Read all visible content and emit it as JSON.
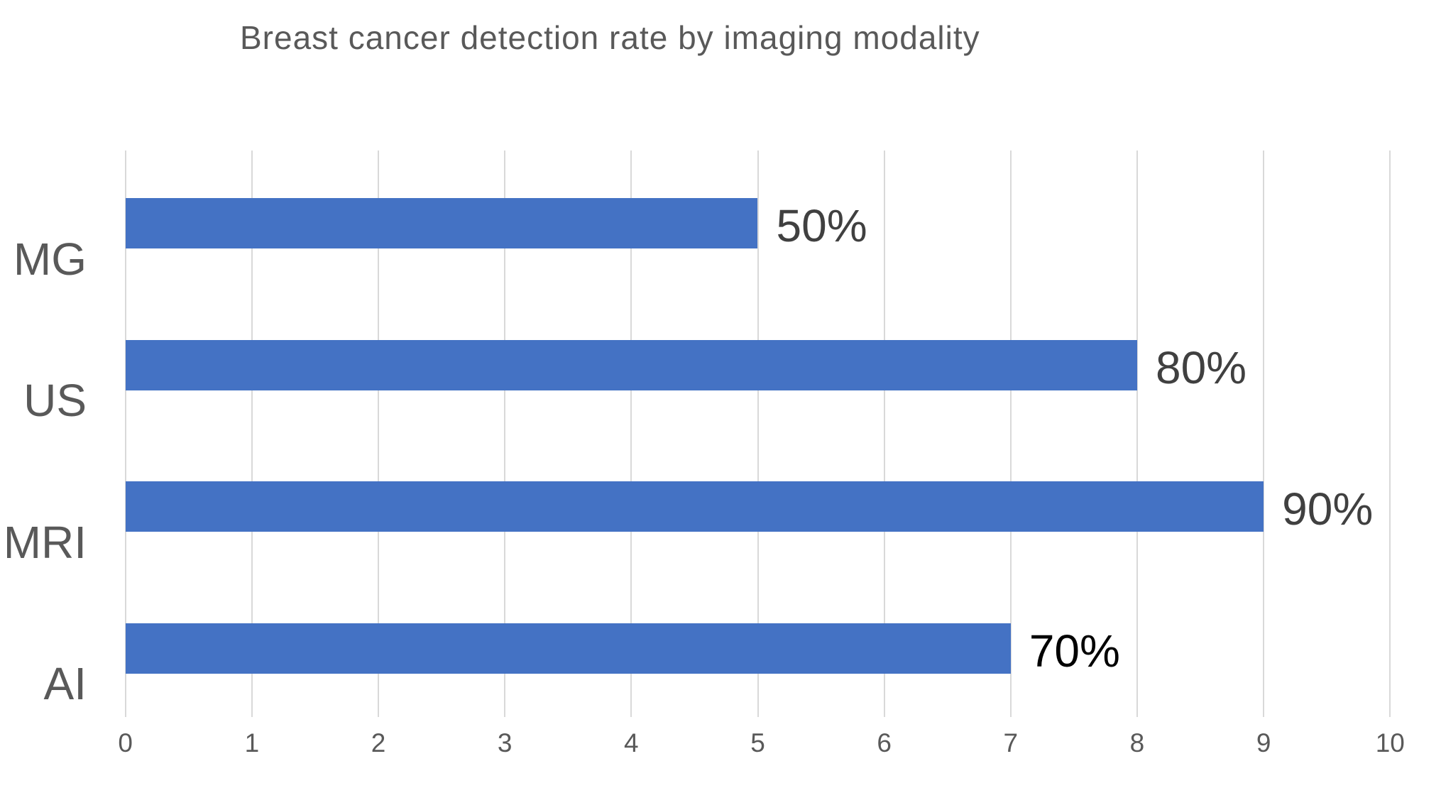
{
  "chart_data": {
    "type": "bar",
    "orientation": "horizontal",
    "title": "Breast cancer detection rate by imaging modality",
    "categories": [
      "MG",
      "US",
      "MRI",
      "AI"
    ],
    "values": [
      5,
      8,
      9,
      7
    ],
    "data_labels": [
      "50%",
      "80%",
      "90%",
      "70%"
    ],
    "xlabel": "",
    "ylabel": "",
    "xlim": [
      0,
      10
    ],
    "x_ticks": [
      0,
      1,
      2,
      3,
      4,
      5,
      6,
      7,
      8,
      9,
      10
    ],
    "grid": true,
    "legend_position": "none",
    "colors": {
      "bar": "#4472C4",
      "title_text": "#595959",
      "category_text": "#595959",
      "tick_text": "#595959",
      "data_label_text": [
        "#404040",
        "#404040",
        "#404040",
        "#000000"
      ],
      "gridline": "#D9D9D9",
      "background": "#FFFFFF"
    }
  }
}
